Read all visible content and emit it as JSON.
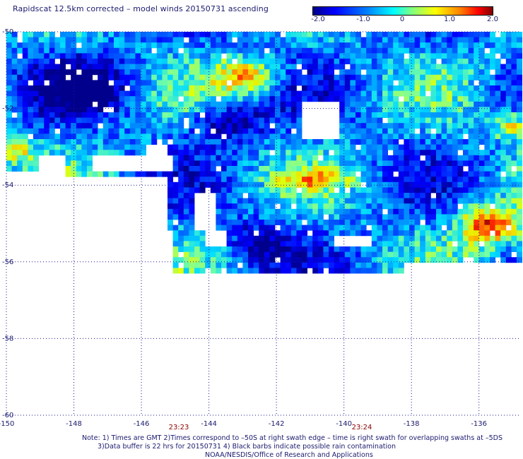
{
  "title": "Rapidscat 12.5km corrected – model winds 20150731 ascending",
  "colorbar": {
    "labels": [
      "-2.0",
      "-1.0",
      "0",
      "1.0",
      "2.0"
    ],
    "colors": [
      "#000088",
      "#0000ff",
      "#0080ff",
      "#00ffff",
      "#80ff80",
      "#ffff00",
      "#ff8000",
      "#ff0000",
      "#800000"
    ]
  },
  "map": {
    "lon_ticks": [
      -150,
      -148,
      -146,
      -144,
      -142,
      -140,
      -138,
      -136
    ],
    "lon_tick_labels": [
      "-150",
      "-148",
      "-146",
      "-144",
      "-142",
      "-140",
      "-138",
      "-136"
    ],
    "lat_ticks": [
      -50,
      -52,
      -54,
      -56,
      -58,
      -60
    ],
    "lat_tick_labels": [
      "-50",
      "-52",
      "-54",
      "-56",
      "-58",
      "-60"
    ],
    "lon_range": [
      -150,
      -134.8
    ],
    "lat_range": [
      -60,
      -50
    ],
    "grid": "dotted"
  },
  "times": [
    {
      "label": "23:23",
      "lon": -145.1
    },
    {
      "label": "23:24",
      "lon": -139.7
    }
  ],
  "notes": {
    "line1": "Note: 1) Times are GMT 2)Times correspond to –50S at right swath edge – time is right swath for overlapping swaths at –5DS",
    "line2": "3)Data buffer is 22 hrs for 20150731 4) Black barbs indicate possible rain contamination",
    "line3": "NOAA/NESDIS/Office of Research and Applications"
  }
}
